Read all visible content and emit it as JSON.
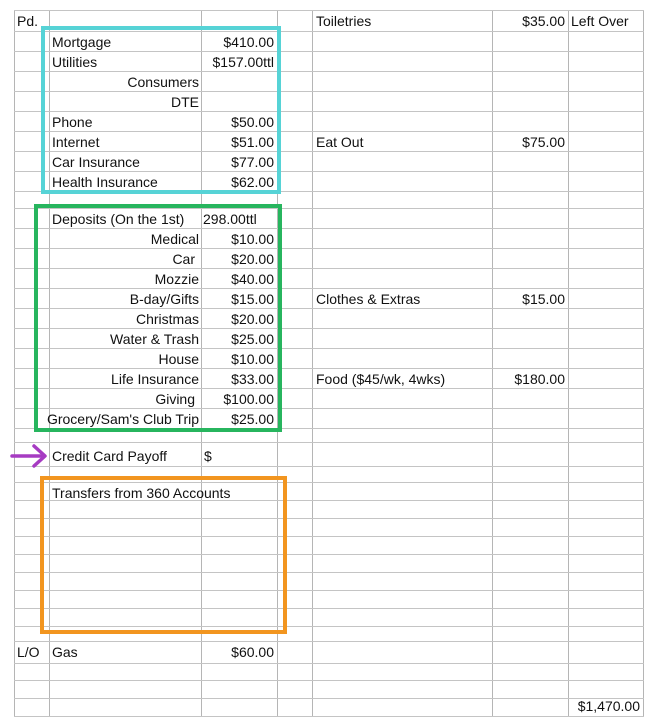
{
  "header": {
    "paid_label": "Pd."
  },
  "bills": {
    "mortgage": {
      "label": "Mortgage",
      "amount": "$410.00"
    },
    "utilities": {
      "label": "Utilities",
      "amount": "$157.00ttl"
    },
    "consumers": {
      "label": "Consumers"
    },
    "dte": {
      "label": "DTE"
    },
    "phone": {
      "label": "Phone",
      "amount": "$50.00"
    },
    "internet": {
      "label": "Internet",
      "amount": "$51.00"
    },
    "car_insurance": {
      "label": "Car Insurance",
      "amount": "$77.00"
    },
    "health_insurance": {
      "label": "Health Insurance",
      "amount": "$62.00"
    }
  },
  "deposits": {
    "header": {
      "label": "Deposits (On the 1st)",
      "amount": "298.00ttl"
    },
    "items": [
      {
        "label": "Medical",
        "amount": "$10.00"
      },
      {
        "label": "Car",
        "amount": "$20.00"
      },
      {
        "label": "Mozzie",
        "amount": "$40.00"
      },
      {
        "label": "B-day/Gifts",
        "amount": "$15.00"
      },
      {
        "label": "Christmas",
        "amount": "$20.00"
      },
      {
        "label": "Water & Trash",
        "amount": "$25.00"
      },
      {
        "label": "House",
        "amount": "$10.00"
      },
      {
        "label": "Life Insurance",
        "amount": "$33.00"
      },
      {
        "label": "Giving",
        "amount": "$100.00"
      },
      {
        "label": "Grocery/Sam's Club Trip",
        "amount": "$25.00"
      }
    ]
  },
  "credit_card": {
    "label": "Credit Card Payoff",
    "amount": "$"
  },
  "transfers": {
    "label": "Transfers from 360 Accounts"
  },
  "leftover_row": {
    "lo_label": "L/O",
    "label": "Gas",
    "amount": "$60.00"
  },
  "right_column": {
    "toiletries": {
      "label": "Toiletries",
      "amount": "$35.00",
      "extra": "Left Over"
    },
    "eat_out": {
      "label": "Eat Out",
      "amount": "$75.00"
    },
    "clothes": {
      "label": "Clothes & Extras",
      "amount": "$15.00"
    },
    "food": {
      "label": "Food ($45/wk, 4wks)",
      "amount": "$180.00"
    }
  },
  "total": {
    "amount": "$1,470.00"
  },
  "colors": {
    "bills_box": "#56d3d6",
    "deposits_box": "#27b55e",
    "transfers_box": "#f2951f",
    "arrow": "#a63bc2"
  },
  "icons": {
    "credit_card_marker": "right-arrow-icon"
  }
}
